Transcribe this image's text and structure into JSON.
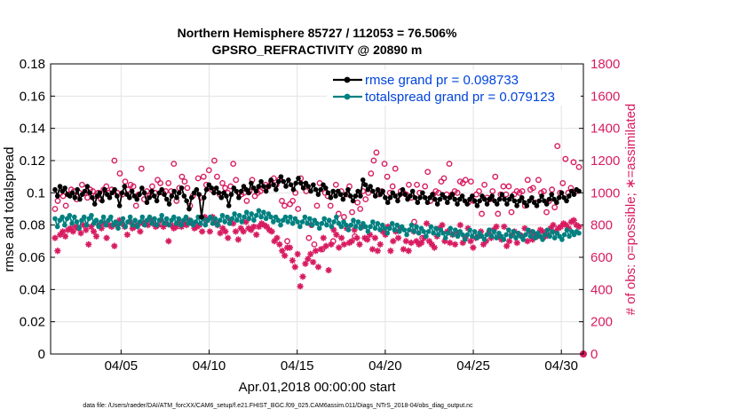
{
  "chart_data": {
    "type": "line",
    "title_line1": "Northern Hemisphere 85727 / 112053 = 76.506%",
    "title_line2": "GPSRO_REFRACTIVITY @ 20890 m",
    "xlabel": "Apr.01,2018 00:00:00 start",
    "ylabel_left": "rmse and totalspread",
    "ylabel_right": "# of obs: o=possible; ∗=assimilated",
    "xlim": [
      1.0,
      31.25
    ],
    "ylim_left": [
      0,
      0.18
    ],
    "ylim_right": [
      0,
      1800
    ],
    "x_ticks": [
      5,
      10,
      15,
      20,
      25,
      30
    ],
    "x_tick_labels": [
      "04/05",
      "04/10",
      "04/15",
      "04/20",
      "04/25",
      "04/30"
    ],
    "y_left_ticks": [
      0,
      0.02,
      0.04,
      0.06,
      0.08,
      0.1,
      0.12,
      0.14,
      0.16,
      0.18
    ],
    "y_left_tick_labels": [
      "0",
      "0.02",
      "0.04",
      "0.06",
      "0.08",
      "0.1",
      "0.12",
      "0.14",
      "0.16",
      "0.18"
    ],
    "y_right_ticks": [
      0,
      200,
      400,
      600,
      800,
      1000,
      1200,
      1400,
      1600,
      1800
    ],
    "y_right_tick_labels": [
      "0",
      "200",
      "400",
      "600",
      "800",
      "1000",
      "1200",
      "1400",
      "1600",
      "1800"
    ],
    "legend": [
      {
        "name": "rmse grand pr = 0.098733",
        "color": "#000000"
      },
      {
        "name": "totalspread grand pr = 0.079123",
        "color": "#008080"
      }
    ],
    "colors": {
      "rmse": "#000000",
      "spread": "#008080",
      "obs": "#d81b60",
      "legend_text": "#0044dd"
    },
    "series": [
      {
        "name": "rmse",
        "axis": "left",
        "values": [
          0.102,
          0.098,
          0.104,
          0.101,
          0.103,
          0.099,
          0.098,
          0.1,
          0.097,
          0.102,
          0.096,
          0.099,
          0.101,
          0.104,
          0.1,
          0.097,
          0.093,
          0.098,
          0.1,
          0.095,
          0.102,
          0.099,
          0.097,
          0.1,
          0.102,
          0.098,
          0.092,
          0.1,
          0.104,
          0.099,
          0.097,
          0.101,
          0.098,
          0.096,
          0.099,
          0.103,
          0.1,
          0.094,
          0.097,
          0.101,
          0.098,
          0.095,
          0.1,
          0.102,
          0.099,
          0.096,
          0.093,
          0.098,
          0.101,
          0.097,
          0.1,
          0.103,
          0.098,
          0.095,
          0.09,
          0.097,
          0.1,
          0.102,
          0.099,
          0.085,
          0.097,
          0.102,
          0.105,
          0.103,
          0.1,
          0.103,
          0.1,
          0.097,
          0.1,
          0.098,
          0.092,
          0.099,
          0.103,
          0.101,
          0.097,
          0.101,
          0.104,
          0.102,
          0.1,
          0.106,
          0.103,
          0.101,
          0.104,
          0.107,
          0.104,
          0.101,
          0.104,
          0.108,
          0.105,
          0.102,
          0.107,
          0.11,
          0.107,
          0.104,
          0.108,
          0.105,
          0.102,
          0.106,
          0.109,
          0.106,
          0.103,
          0.106,
          0.104,
          0.101,
          0.105,
          0.102,
          0.099,
          0.102,
          0.105,
          0.103,
          0.1,
          0.097,
          0.101,
          0.098,
          0.101,
          0.099,
          0.096,
          0.099,
          0.102,
          0.098,
          0.095,
          0.098,
          0.101,
          0.098,
          0.108,
          0.105,
          0.102,
          0.104,
          0.101,
          0.098,
          0.102,
          0.099,
          0.101,
          0.097,
          0.094,
          0.097,
          0.1,
          0.098,
          0.095,
          0.099,
          0.102,
          0.099,
          0.096,
          0.098,
          0.101,
          0.097,
          0.094,
          0.097,
          0.1,
          0.097,
          0.094,
          0.097,
          0.099,
          0.096,
          0.093,
          0.096,
          0.099,
          0.097,
          0.094,
          0.097,
          0.099,
          0.096,
          0.093,
          0.096,
          0.098,
          0.095,
          0.093,
          0.096,
          0.098,
          0.095,
          0.092,
          0.095,
          0.098,
          0.096,
          0.093,
          0.096,
          0.098,
          0.095,
          0.093,
          0.096,
          0.099,
          0.096,
          0.093,
          0.096,
          0.098,
          0.095,
          0.092,
          0.095,
          0.097,
          0.094,
          0.092,
          0.095,
          0.097,
          0.094,
          0.092,
          0.095,
          0.098,
          0.095,
          0.093,
          0.096,
          0.099,
          0.096,
          0.094,
          0.097,
          0.1,
          0.097,
          0.095,
          0.098,
          0.101,
          0.099,
          0.102,
          0.101
        ]
      },
      {
        "name": "totalspread",
        "axis": "left",
        "values": [
          0.084,
          0.079,
          0.083,
          0.085,
          0.08,
          0.084,
          0.086,
          0.081,
          0.085,
          0.082,
          0.078,
          0.083,
          0.085,
          0.08,
          0.084,
          0.086,
          0.081,
          0.083,
          0.079,
          0.082,
          0.085,
          0.08,
          0.083,
          0.085,
          0.08,
          0.082,
          0.078,
          0.081,
          0.084,
          0.079,
          0.082,
          0.085,
          0.08,
          0.083,
          0.079,
          0.082,
          0.085,
          0.08,
          0.083,
          0.085,
          0.081,
          0.084,
          0.08,
          0.083,
          0.086,
          0.081,
          0.084,
          0.08,
          0.083,
          0.085,
          0.081,
          0.084,
          0.08,
          0.083,
          0.085,
          0.081,
          0.083,
          0.08,
          0.082,
          0.085,
          0.081,
          0.084,
          0.08,
          0.083,
          0.085,
          0.081,
          0.084,
          0.08,
          0.083,
          0.086,
          0.082,
          0.085,
          0.081,
          0.084,
          0.087,
          0.083,
          0.086,
          0.082,
          0.085,
          0.088,
          0.084,
          0.087,
          0.083,
          0.086,
          0.089,
          0.085,
          0.088,
          0.084,
          0.087,
          0.085,
          0.082,
          0.085,
          0.083,
          0.08,
          0.083,
          0.085,
          0.082,
          0.085,
          0.081,
          0.084,
          0.082,
          0.079,
          0.082,
          0.085,
          0.081,
          0.084,
          0.08,
          0.083,
          0.081,
          0.078,
          0.081,
          0.084,
          0.08,
          0.083,
          0.079,
          0.082,
          0.085,
          0.081,
          0.079,
          0.082,
          0.08,
          0.077,
          0.08,
          0.083,
          0.079,
          0.082,
          0.078,
          0.081,
          0.079,
          0.076,
          0.079,
          0.082,
          0.078,
          0.081,
          0.077,
          0.08,
          0.078,
          0.075,
          0.078,
          0.081,
          0.077,
          0.08,
          0.076,
          0.079,
          0.077,
          0.074,
          0.077,
          0.08,
          0.076,
          0.079,
          0.075,
          0.078,
          0.076,
          0.073,
          0.076,
          0.079,
          0.075,
          0.078,
          0.074,
          0.077,
          0.075,
          0.072,
          0.075,
          0.078,
          0.074,
          0.077,
          0.073,
          0.076,
          0.074,
          0.071,
          0.074,
          0.077,
          0.073,
          0.076,
          0.072,
          0.075,
          0.073,
          0.071,
          0.074,
          0.077,
          0.073,
          0.076,
          0.072,
          0.075,
          0.073,
          0.071,
          0.074,
          0.077,
          0.073,
          0.076,
          0.072,
          0.075,
          0.073,
          0.071,
          0.074,
          0.077,
          0.073,
          0.076,
          0.072,
          0.075,
          0.073,
          0.071,
          0.074,
          0.077,
          0.073,
          0.076,
          0.072,
          0.075,
          0.073,
          0.071,
          0.074,
          0.077,
          0.073,
          0.076,
          0.074,
          0.076,
          0.075
        ]
      },
      {
        "name": "obs_possible",
        "axis": "right",
        "values": [
          900,
          950,
          1000,
          980,
          920,
          990,
          1020,
          1010,
          960,
          1000,
          1050,
          1000,
          970,
          1020,
          1010,
          980,
          1000,
          960,
          1020,
          1040,
          1000,
          1020,
          1200,
          1000,
          1120,
          990,
          1070,
          1020,
          1050,
          1040,
          920,
          990,
          1150,
          960,
          1010,
          980,
          1040,
          1000,
          1080,
          1060,
          1000,
          1010,
          1060,
          1010,
          1180,
          950,
          1030,
          1100,
          1070,
          1030,
          920,
          980,
          1000,
          1090,
          970,
          1100,
          1050,
          1140,
          1020,
          1200,
          1100,
          990,
          1060,
          1030,
          1000,
          1040,
          1180,
          1080,
          1000,
          990,
          1000,
          950,
          1010,
          1080,
          980,
          1000,
          1010,
          1030,
          1050,
          1040,
          1070,
          1090,
          1050,
          1080,
          950,
          920,
          700,
          930,
          950,
          1000,
          900,
          1090,
          1050,
          1010,
          720,
          800,
          680,
          920,
          1060,
          650,
          1000,
          980,
          920,
          700,
          1050,
          870,
          1010,
          850,
          990,
          1040,
          880,
          730,
          940,
          900,
          1010,
          960,
          1000,
          1120,
          1200,
          1250,
          990,
          1010,
          1180,
          1100,
          1000,
          1040,
          1150,
          980,
          1010,
          1000,
          990,
          1050,
          970,
          820,
          1050,
          1000,
          720,
          1040,
          1130,
          950,
          990,
          1010,
          1000,
          1070,
          1090,
          990,
          1180,
          990,
          1010,
          1000,
          1070,
          1060,
          1080,
          940,
          1070,
          950,
          990,
          1010,
          870,
          1050,
          970,
          960,
          1010,
          1100,
          870,
          990,
          1040,
          990,
          1040,
          880,
          990,
          1010,
          1000,
          1010,
          920,
          1080,
          1020,
          1030,
          940,
          1080,
          1000,
          1010,
          880,
          950,
          1020,
          910,
          1290,
          1000,
          1060,
          1210,
          1000,
          1030,
          1190,
          1010,
          1160
        ]
      },
      {
        "name": "obs_assimilated",
        "axis": "right",
        "values": [
          720,
          640,
          740,
          760,
          730,
          770,
          780,
          760,
          790,
          780,
          750,
          800,
          770,
          680,
          790,
          760,
          730,
          800,
          780,
          810,
          720,
          800,
          790,
          670,
          800,
          830,
          810,
          790,
          740,
          820,
          780,
          790,
          800,
          760,
          810,
          820,
          800,
          830,
          810,
          790,
          800,
          830,
          790,
          810,
          700,
          800,
          780,
          790,
          820,
          790,
          810,
          800,
          830,
          810,
          780,
          790,
          800,
          760,
          850,
          830,
          760,
          850,
          820,
          800,
          750,
          780,
          760,
          720,
          830,
          810,
          760,
          710,
          780,
          760,
          820,
          780,
          770,
          790,
          740,
          790,
          810,
          800,
          790,
          770,
          760,
          700,
          720,
          680,
          640,
          610,
          660,
          660,
          580,
          540,
          620,
          420,
          480,
          560,
          590,
          620,
          570,
          640,
          540,
          650,
          720,
          670,
          520,
          680,
          770,
          740,
          660,
          720,
          680,
          780,
          690,
          700,
          770,
          720,
          680,
          790,
          720,
          710,
          740,
          650,
          720,
          640,
          680,
          760,
          740,
          790,
          640,
          700,
          760,
          720,
          780,
          650,
          700,
          640,
          690,
          760,
          700,
          680,
          690,
          720,
          810,
          700,
          680,
          660,
          730,
          780,
          800,
          700,
          760,
          690,
          740,
          680,
          750,
          800,
          690,
          720,
          780,
          700,
          660,
          720,
          730,
          760,
          680,
          700,
          750,
          720,
          770,
          790,
          730,
          710,
          790,
          670,
          700,
          740,
          760,
          690,
          740,
          730,
          780,
          700,
          760,
          710,
          740,
          730,
          770,
          760,
          730,
          740,
          780,
          800,
          760,
          780,
          790,
          810,
          800,
          780,
          820,
          830,
          800,
          790
        ]
      }
    ],
    "footnote": "data file: /Users/raeder/DAI/ATM_forcXX/CAM6_setup/f.e21.FHIST_BGC.f09_025.CAM6assim.011/Diags_NTrS_2018-04/obs_diag_output.nc"
  }
}
